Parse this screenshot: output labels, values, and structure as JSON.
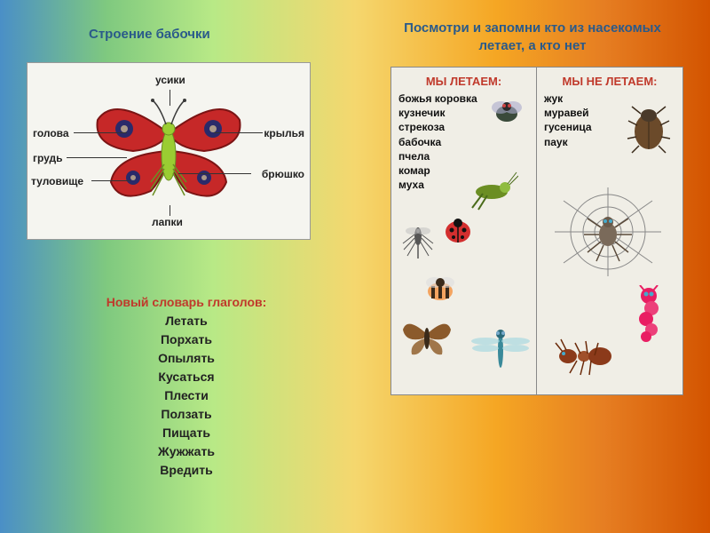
{
  "titles": {
    "left": "Строение бабочки",
    "right": "Посмотри и запомни кто из насекомых летает, а кто нет"
  },
  "butterfly": {
    "labels": {
      "usiki": "усики",
      "golova": "голова",
      "grud": "грудь",
      "tulovishche": "туловище",
      "lapki": "лапки",
      "krylya": "крылья",
      "bryushko": "брюшко"
    },
    "colors": {
      "wing": "#c62828",
      "wing_dark": "#7b1414",
      "spot": "#2a2a6a",
      "body": "#6b8e23",
      "body_light": "#9acd32",
      "antenna": "#3a3a3a"
    }
  },
  "verbs": {
    "title": "Новый словарь глаголов:",
    "items": [
      "Летать",
      "Порхать",
      "Опылять",
      "Кусаться",
      "Плести",
      "Ползать",
      "Пищать",
      "Жужжать",
      "Вредить"
    ]
  },
  "insects": {
    "fly": {
      "title": "МЫ ЛЕТАЕМ:",
      "items": [
        "божья коровка",
        "кузнечик",
        "стрекоза",
        "бабочка",
        "пчела",
        "комар",
        "муха"
      ]
    },
    "nofly": {
      "title": "МЫ НЕ ЛЕТАЕМ:",
      "items": [
        "жук",
        "муравей",
        "гусеница",
        "паук"
      ]
    }
  },
  "style": {
    "title_color": "#2a5a8a",
    "red_text": "#c0392b",
    "panel_bg": "#f0eee6"
  }
}
